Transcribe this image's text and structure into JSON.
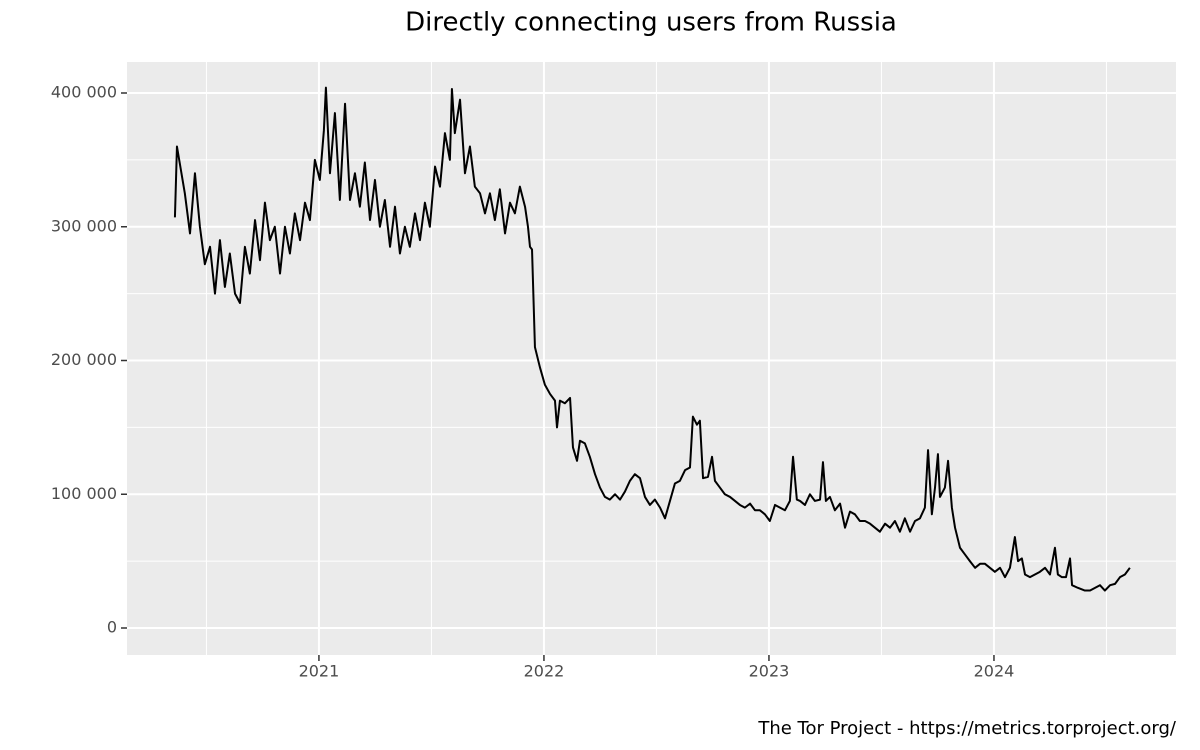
{
  "chart_data": {
    "type": "line",
    "title": "Directly connecting users from Russia",
    "caption": "The Tor Project - https://metrics.torproject.org/",
    "x": [
      2020.36,
      2020.369,
      2020.404,
      2020.427,
      2020.449,
      2020.471,
      2020.493,
      2020.516,
      2020.538,
      2020.56,
      2020.582,
      2020.604,
      2020.627,
      2020.649,
      2020.671,
      2020.693,
      2020.716,
      2020.738,
      2020.76,
      2020.782,
      2020.804,
      2020.827,
      2020.849,
      2020.871,
      2020.893,
      2020.916,
      2020.938,
      2020.96,
      2020.982,
      2021.004,
      2021.022,
      2021.031,
      2021.049,
      2021.071,
      2021.093,
      2021.116,
      2021.138,
      2021.16,
      2021.182,
      2021.204,
      2021.227,
      2021.249,
      2021.271,
      2021.293,
      2021.316,
      2021.338,
      2021.36,
      2021.382,
      2021.404,
      2021.427,
      2021.449,
      2021.471,
      2021.493,
      2021.516,
      2021.538,
      2021.56,
      2021.582,
      2021.591,
      2021.604,
      2021.627,
      2021.649,
      2021.671,
      2021.693,
      2021.716,
      2021.738,
      2021.76,
      2021.782,
      2021.804,
      2021.827,
      2021.849,
      2021.871,
      2021.893,
      2021.916,
      2021.929,
      2021.938,
      2021.947,
      2021.96,
      2021.982,
      2022.004,
      2022.027,
      2022.049,
      2022.058,
      2022.071,
      2022.093,
      2022.116,
      2022.129,
      2022.147,
      2022.16,
      2022.182,
      2022.204,
      2022.227,
      2022.249,
      2022.271,
      2022.293,
      2022.316,
      2022.338,
      2022.36,
      2022.382,
      2022.404,
      2022.427,
      2022.449,
      2022.471,
      2022.493,
      2022.516,
      2022.538,
      2022.56,
      2022.582,
      2022.604,
      2022.627,
      2022.649,
      2022.662,
      2022.68,
      2022.693,
      2022.707,
      2022.729,
      2022.747,
      2022.76,
      2022.782,
      2022.804,
      2022.827,
      2022.849,
      2022.871,
      2022.893,
      2022.916,
      2022.938,
      2022.96,
      2022.982,
      2023.004,
      2023.027,
      2023.049,
      2023.071,
      2023.093,
      2023.107,
      2023.124,
      2023.138,
      2023.16,
      2023.182,
      2023.204,
      2023.227,
      2023.24,
      2023.253,
      2023.271,
      2023.293,
      2023.316,
      2023.338,
      2023.36,
      2023.382,
      2023.404,
      2023.427,
      2023.449,
      2023.471,
      2023.493,
      2023.516,
      2023.538,
      2023.56,
      2023.582,
      2023.604,
      2023.627,
      2023.649,
      2023.671,
      2023.693,
      2023.707,
      2023.724,
      2023.738,
      2023.751,
      2023.76,
      2023.782,
      2023.796,
      2023.813,
      2023.827,
      2023.849,
      2023.871,
      2023.893,
      2023.916,
      2023.938,
      2023.96,
      2023.982,
      2024.004,
      2024.027,
      2024.049,
      2024.071,
      2024.093,
      2024.107,
      2024.124,
      2024.138,
      2024.16,
      2024.182,
      2024.204,
      2024.227,
      2024.249,
      2024.271,
      2024.284,
      2024.302,
      2024.32,
      2024.338,
      2024.347,
      2024.373,
      2024.404,
      2024.427,
      2024.449,
      2024.471,
      2024.493,
      2024.516,
      2024.538,
      2024.56,
      2024.582,
      2024.604
    ],
    "series": [
      {
        "name": "Russia",
        "color": "#000000",
        "values": [
          307000,
          360000,
          325000,
          295000,
          340000,
          300000,
          272000,
          285000,
          250000,
          290000,
          255000,
          280000,
          250000,
          243000,
          285000,
          265000,
          305000,
          275000,
          318000,
          290000,
          300000,
          265000,
          300000,
          280000,
          310000,
          290000,
          318000,
          305000,
          350000,
          335000,
          372000,
          404000,
          340000,
          385000,
          320000,
          392000,
          320000,
          340000,
          315000,
          348000,
          305000,
          335000,
          300000,
          320000,
          285000,
          315000,
          280000,
          300000,
          285000,
          310000,
          290000,
          318000,
          300000,
          345000,
          330000,
          370000,
          350000,
          403000,
          370000,
          395000,
          340000,
          360000,
          330000,
          325000,
          310000,
          325000,
          305000,
          328000,
          295000,
          318000,
          310000,
          330000,
          315000,
          300000,
          285000,
          283000,
          210000,
          195000,
          182000,
          175000,
          170000,
          150000,
          170000,
          168000,
          172000,
          135000,
          125000,
          140000,
          138000,
          128000,
          115000,
          105000,
          98000,
          96000,
          100000,
          96000,
          102000,
          110000,
          115000,
          112000,
          98000,
          92000,
          96000,
          90000,
          82000,
          95000,
          108000,
          110000,
          118000,
          120000,
          158000,
          152000,
          155000,
          112000,
          113000,
          128000,
          110000,
          105000,
          100000,
          98000,
          95000,
          92000,
          90000,
          93000,
          88000,
          88000,
          85000,
          80000,
          92000,
          90000,
          88000,
          95000,
          128000,
          96000,
          95000,
          92000,
          100000,
          95000,
          96000,
          124000,
          95000,
          98000,
          88000,
          93000,
          75000,
          87000,
          85000,
          80000,
          80000,
          78000,
          75000,
          72000,
          78000,
          75000,
          80000,
          72000,
          82000,
          72000,
          80000,
          82000,
          90000,
          133000,
          85000,
          105000,
          130000,
          98000,
          105000,
          125000,
          90000,
          75000,
          60000,
          55000,
          50000,
          45000,
          48000,
          48000,
          45000,
          42000,
          45000,
          38000,
          45000,
          68000,
          50000,
          52000,
          40000,
          38000,
          40000,
          42000,
          45000,
          40000,
          60000,
          40000,
          38000,
          38000,
          52000,
          32000,
          30000,
          28000,
          28000,
          30000,
          32000,
          28000,
          32000,
          33000,
          38000,
          40000,
          45000
        ]
      }
    ],
    "xlim": [
      2020.147,
      2024.809
    ],
    "xticks": [
      2021,
      2022,
      2023,
      2024
    ],
    "ylim": [
      -20187,
      423178
    ],
    "yticks": [
      0,
      {
        "value": 100000,
        "label": "100 000"
      },
      {
        "value": 200000,
        "label": "200 000"
      },
      {
        "value": 300000,
        "label": "300 000"
      },
      {
        "value": 400000,
        "label": "400 000"
      }
    ],
    "grid": true
  }
}
